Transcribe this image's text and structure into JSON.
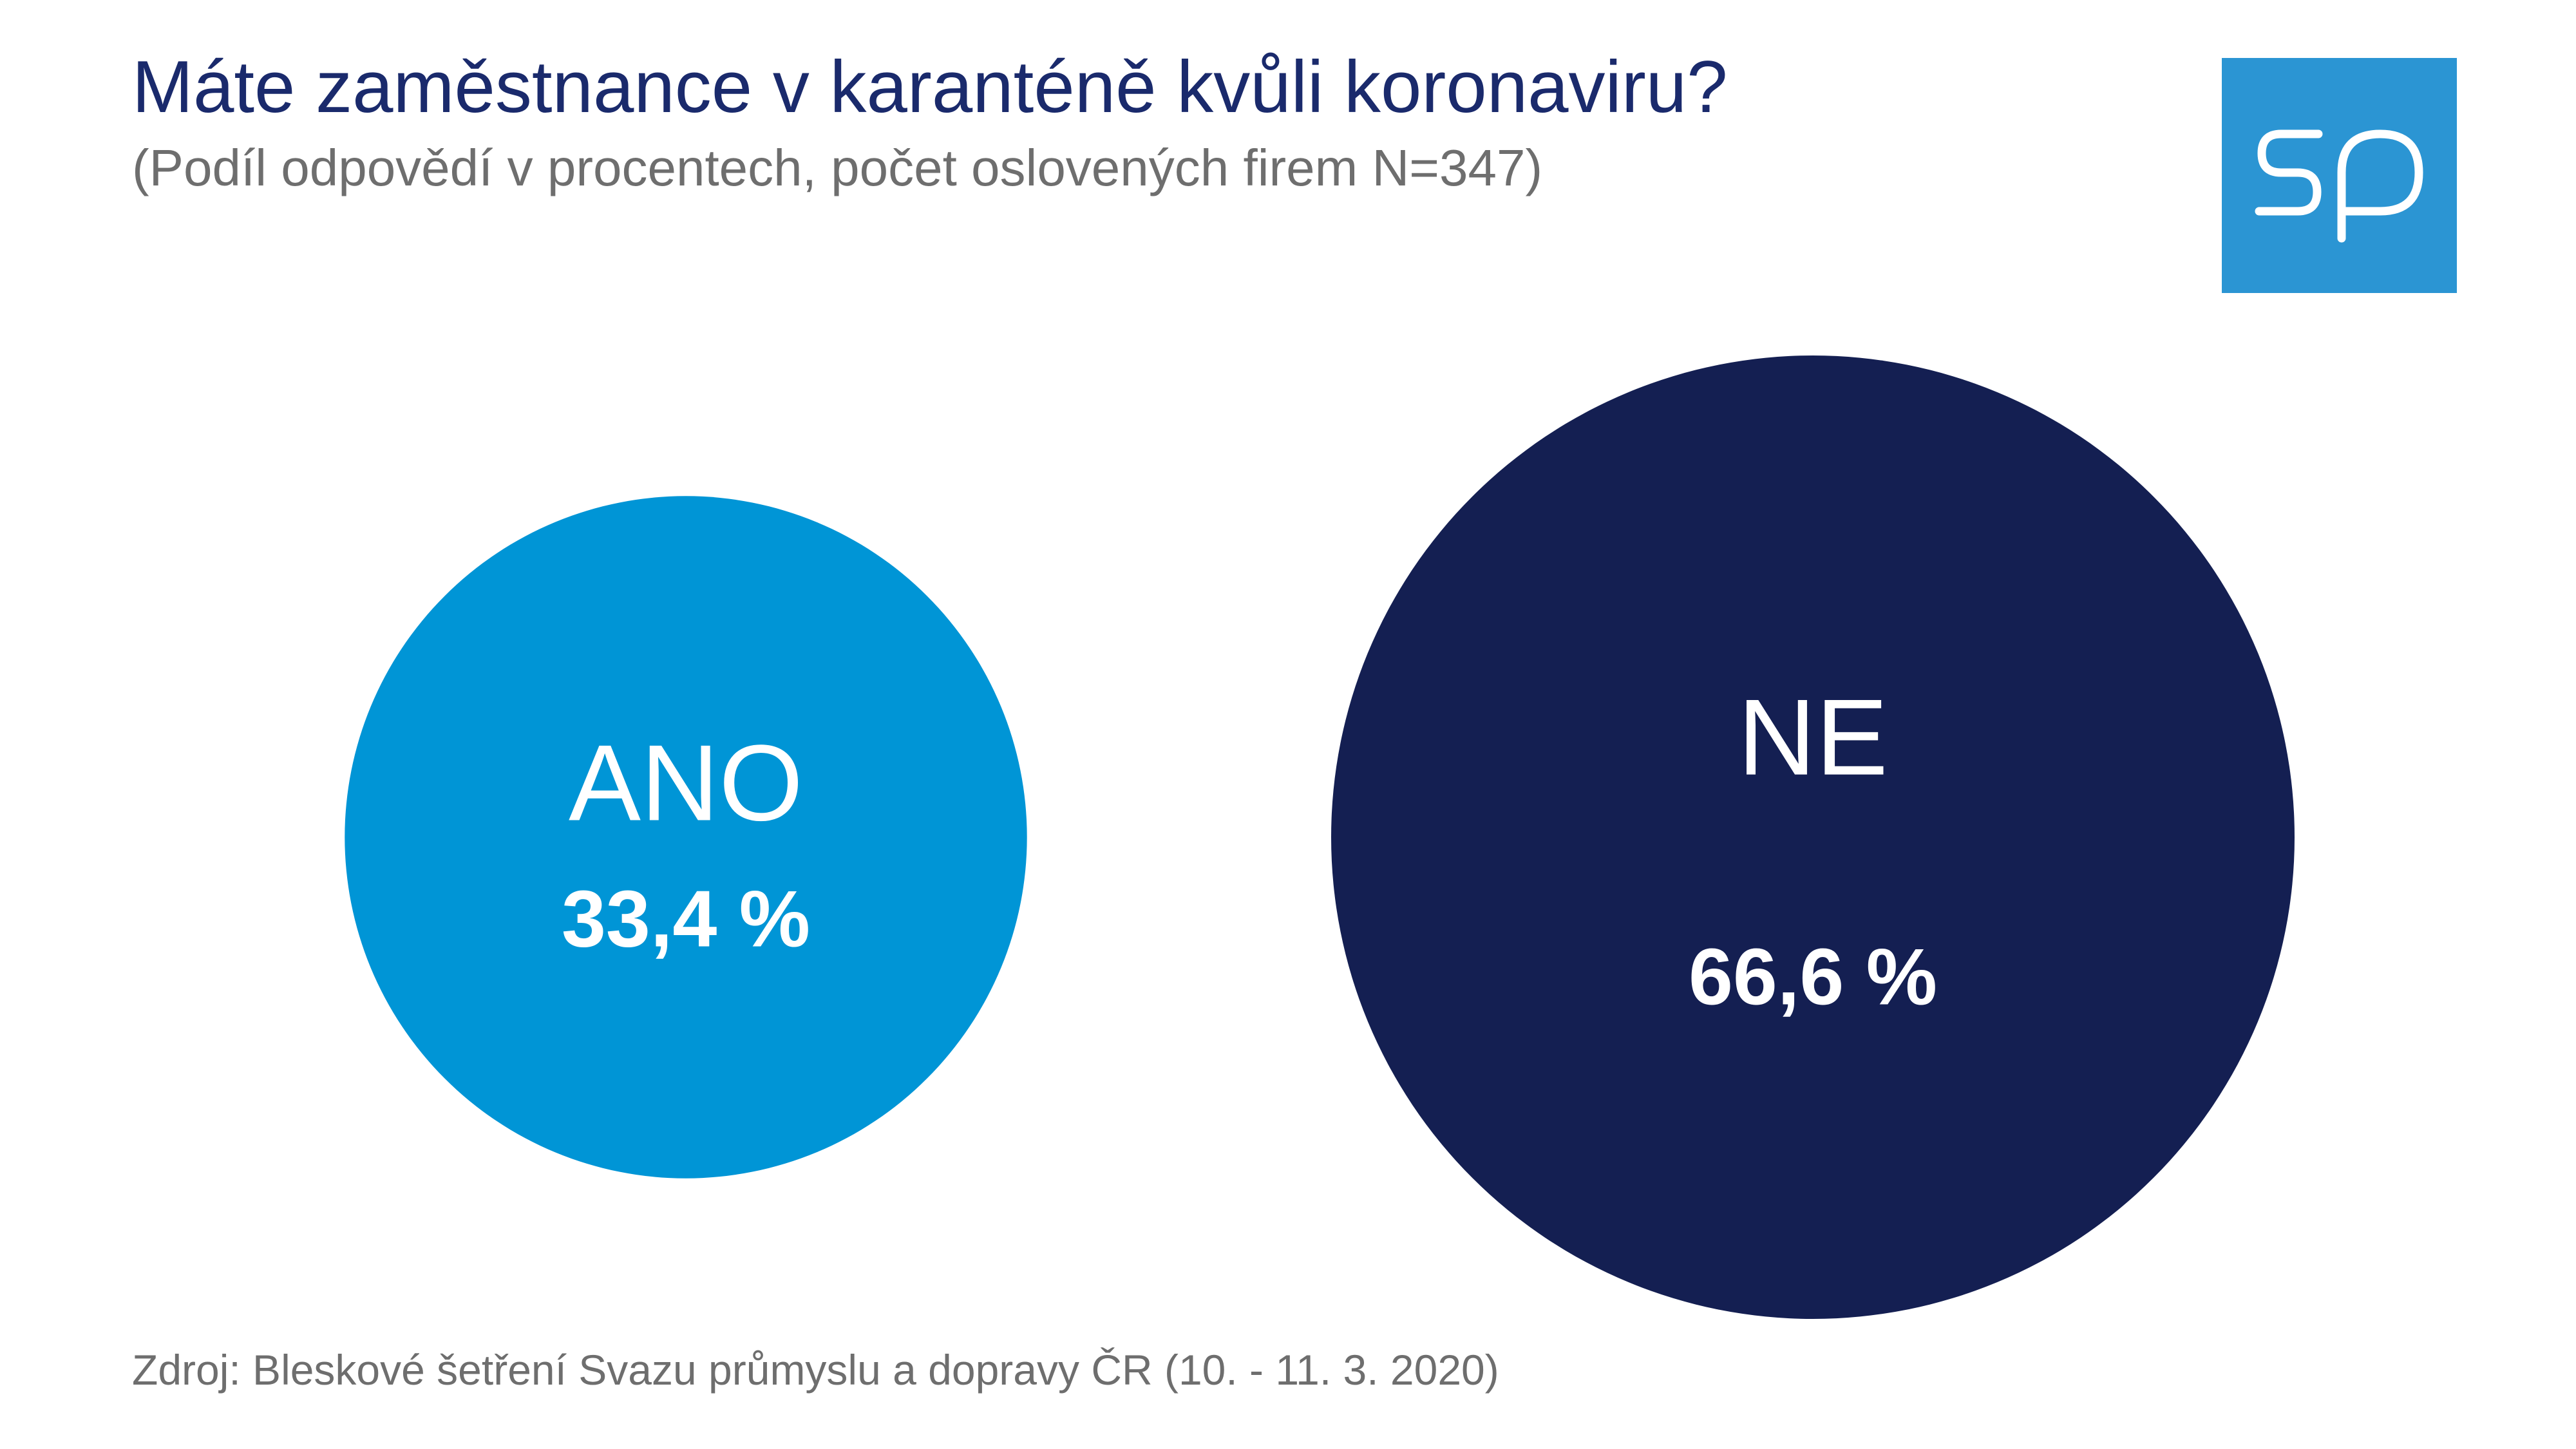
{
  "chart_data": {
    "type": "bubble",
    "title": "Máte zaměstnance v karanténě kvůli koronaviru?",
    "subtitle": "(Podíl odpovědí v procentech, počet oslovených firem N=347)",
    "unit": "%",
    "categories": [
      "ANO",
      "NE"
    ],
    "values": [
      33.4,
      66.6
    ],
    "value_labels": [
      "33,4 %",
      "66,6 %"
    ],
    "colors": [
      "#0095d6",
      "#141f52"
    ],
    "label_color": "#ffffff",
    "legend": "none",
    "grid": false
  },
  "source": "Zdroj: Bleskové šetření Svazu průmyslu a dopravy  ČR (10. - 11. 3. 2020)",
  "logo": {
    "icon": "sp-logo-icon",
    "background": "#2b95d3"
  }
}
